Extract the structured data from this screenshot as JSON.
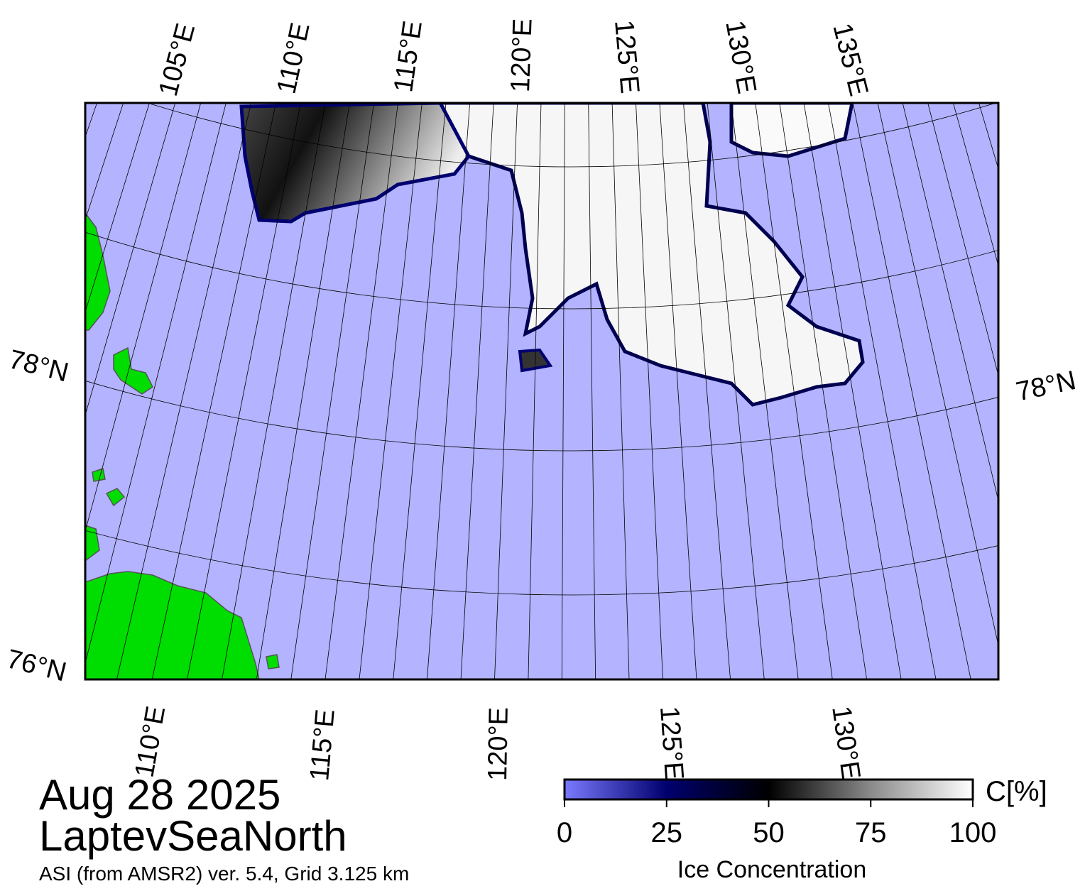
{
  "map": {
    "top_labels": [
      "105°E",
      "110°E",
      "115°E",
      "120°E",
      "125°E",
      "130°E",
      "135°E"
    ],
    "bottom_labels": [
      "110°E",
      "115°E",
      "120°E",
      "125°E",
      "130°E"
    ],
    "left_labels": [
      "78°N",
      "76°N"
    ],
    "right_labels": [
      "78°N"
    ]
  },
  "info": {
    "date": "Aug 28 2025",
    "region": "LaptevSeaNorth",
    "source": "ASI (from AMSR2) ver. 5.4,  Grid 3.125 km"
  },
  "colorbar": {
    "title": "Ice Concentration",
    "unit": "C[%]",
    "lim": [
      0,
      100
    ],
    "ticks": [
      0,
      25,
      50,
      75,
      100
    ],
    "colors": [
      "#7a7aff",
      "#00006e",
      "#000000",
      "#8a8a8a",
      "#ffffff"
    ]
  }
}
